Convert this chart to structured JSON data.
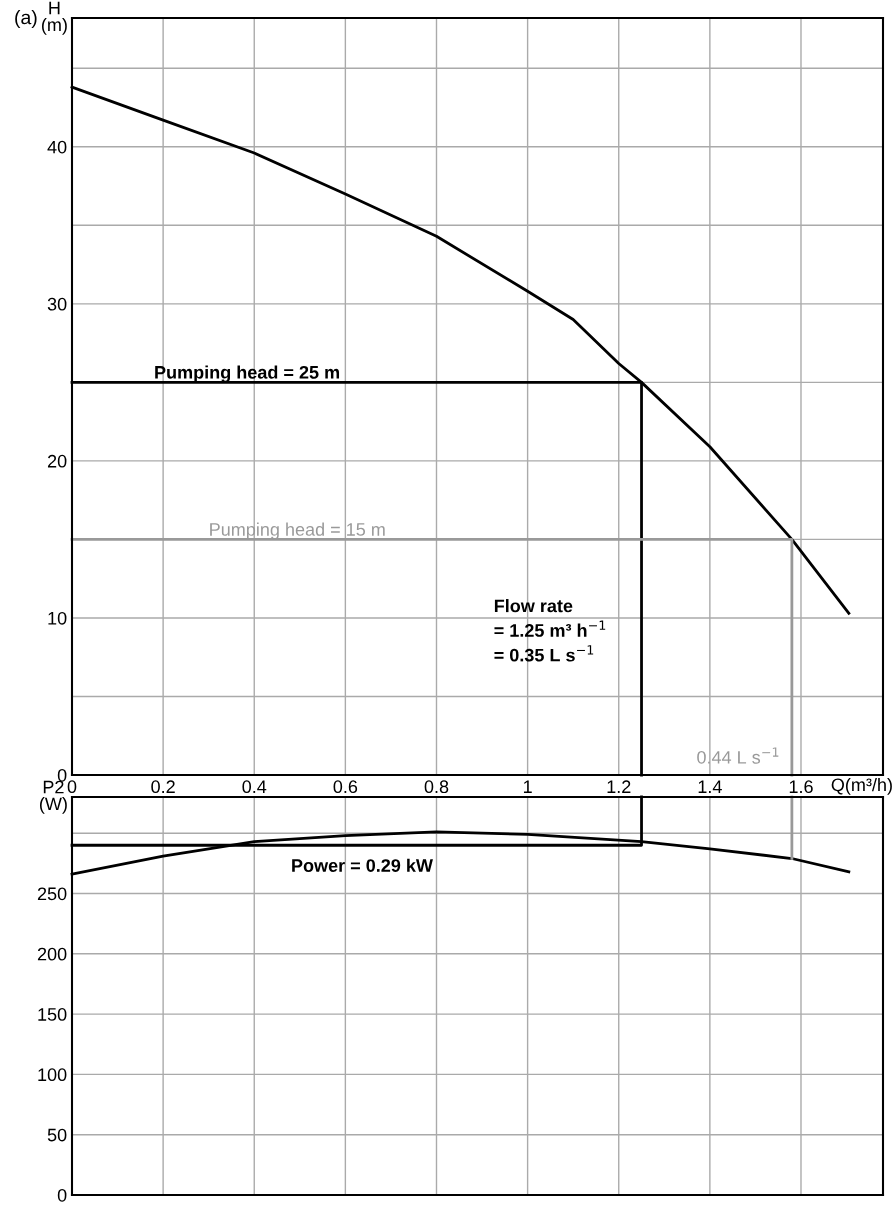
{
  "chart_data": [
    {
      "type": "line",
      "title": "(a)",
      "xlabel": "Q(m³/h)",
      "ylabel": "H\n(m)",
      "xlim": [
        0,
        1.78
      ],
      "ylim": [
        0,
        48.2
      ],
      "xticks": [
        0,
        0.2,
        0.4,
        0.6,
        0.8,
        1,
        1.2,
        1.4,
        1.6
      ],
      "yticks": [
        0,
        {
          "value": 5,
          "label": null
        },
        10,
        {
          "value": 15,
          "label": null
        },
        20,
        {
          "value": 25,
          "label": null
        },
        30,
        {
          "value": 35,
          "label": null
        },
        40,
        {
          "value": 45,
          "label": null
        }
      ],
      "grid": true,
      "series": [
        {
          "color": "#000000",
          "x": [
            0,
            0.2,
            0.4,
            0.6,
            0.8,
            1.0,
            1.1,
            1.2,
            1.25,
            1.4,
            1.58,
            1.705
          ],
          "values": [
            43.8,
            41.7,
            39.6,
            37.0,
            34.3,
            30.8,
            29.0,
            26.2,
            25,
            20.9,
            15,
            10.3
          ]
        },
        {
          "color": "#000000",
          "x": [
            0,
            1.25,
            1.25
          ],
          "values": [
            25,
            25,
            0
          ]
        },
        {
          "color": "#999999",
          "x": [
            0,
            1.58,
            1.58
          ],
          "values": [
            15,
            15,
            0
          ]
        }
      ],
      "annotations": [
        {
          "text": "Pumping head = 25 m",
          "x": 0.18,
          "y": 25
        },
        {
          "text": "Pumping head = 15 m",
          "x": 0.3,
          "y": 15
        },
        "Flow rate\n= 1.25 m³ h$^{−1}$\n= 0.35 L s$^{−1}$",
        "0.44 L s$^{−1}$"
      ]
    },
    {
      "type": "line",
      "ylabel": "P2\n(W)",
      "xlim": [
        0,
        1.78
      ],
      "ylim": [
        0,
        330
      ],
      "xticks": [
        0,
        0.2,
        0.4,
        0.6,
        0.8,
        1,
        1.2,
        1.4,
        1.6
      ],
      "yticks": [
        0,
        50,
        100,
        150,
        200,
        250,
        {
          "value": 300,
          "label": null
        }
      ],
      "tick_labels": "y",
      "grid": true,
      "series": [
        {
          "color": "#000000",
          "x": [
            0,
            0.2,
            0.4,
            0.6,
            0.8,
            1.0,
            1.25,
            1.4,
            1.58,
            1.705
          ],
          "values": [
            266,
            281,
            293,
            298,
            301,
            299,
            293,
            287,
            279,
            268
          ]
        },
        {
          "color": "#000000",
          "x": [
            0,
            1.25,
            1.25
          ],
          "values": [
            290,
            290,
            330
          ]
        },
        {
          "color": "#999999",
          "x": [
            1.58,
            1.58
          ],
          "values": [
            279,
            330
          ]
        }
      ],
      "annotations": [
        "Power = 0.29 kW"
      ]
    }
  ]
}
